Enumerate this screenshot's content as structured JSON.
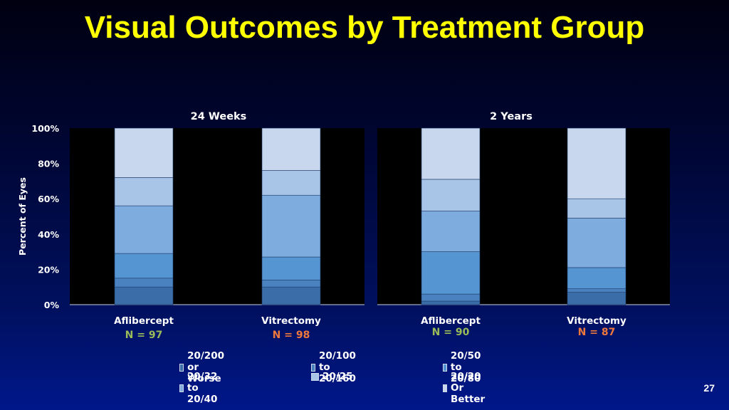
{
  "slide": {
    "title": "Visual Outcomes by Treatment Group",
    "page_number": "27"
  },
  "chart_data": {
    "type": "bar",
    "stacked": true,
    "ylabel": "Percent of Eyes",
    "ylim": [
      0,
      100
    ],
    "yticks": [
      "0%",
      "20%",
      "40%",
      "60%",
      "80%",
      "100%"
    ],
    "legend_position": "bottom",
    "series": [
      {
        "name": "20/200 or Worse",
        "color": "#3b6ea8"
      },
      {
        "name": "20/100 to 20/160",
        "color": "#4a82c0"
      },
      {
        "name": "20/50 to 20/80",
        "color": "#5595d2"
      },
      {
        "name": "20/32 to 20/40",
        "color": "#7eacde"
      },
      {
        "name": "20/25",
        "color": "#a8c4e6"
      },
      {
        "name": "20/20 Or Better",
        "color": "#c8d6ee"
      }
    ],
    "panels": [
      {
        "title": "24 Weeks",
        "groups": [
          {
            "label": "Aflibercept",
            "n": "N = 97",
            "n_color": "#9bbb59",
            "values": [
              10,
              5,
              14,
              27,
              16,
              28
            ]
          },
          {
            "label": "Vitrectomy",
            "n": "N = 98",
            "n_color": "#f0783c",
            "values": [
              10,
              4,
              13,
              35,
              14,
              24
            ]
          }
        ]
      },
      {
        "title": "2 Years",
        "groups": [
          {
            "label": "Aflibercept",
            "n": "N = 90",
            "n_color": "#9bbb59",
            "values": [
              2,
              4,
              24,
              23,
              18,
              29
            ]
          },
          {
            "label": "Vitrectomy",
            "n": "N = 87",
            "n_color": "#f0783c",
            "values": [
              7,
              2,
              12,
              28,
              11,
              40
            ]
          }
        ]
      }
    ]
  }
}
